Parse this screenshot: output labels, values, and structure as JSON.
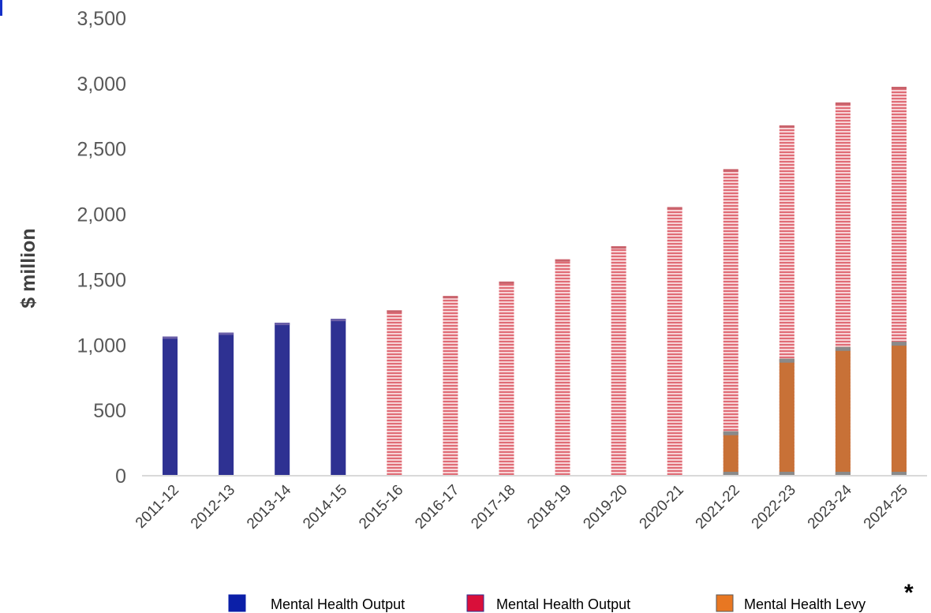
{
  "chart_data": {
    "type": "bar",
    "categories": [
      "2011-12",
      "2012-13",
      "2013-14",
      "2014-15",
      "2015-16",
      "2016-17",
      "2017-18",
      "2018-19",
      "2019-20",
      "2020-21",
      "2021-22",
      "2022-23",
      "2023-24",
      "2024-25"
    ],
    "ylabel": "$ million",
    "ylim": [
      0,
      3500
    ],
    "yticks": [
      0,
      500,
      1000,
      1500,
      2000,
      2500,
      3000,
      3500
    ],
    "ytick_labels": [
      "0",
      "500",
      "1,000",
      "1,500",
      "2,000",
      "2,500",
      "3,000",
      "3,500"
    ],
    "grid": false,
    "legend_position": "bottom",
    "series": [
      {
        "name": "Mental Health Output",
        "color": "#2e3192",
        "pattern": "solid",
        "values": [
          1065,
          1095,
          1170,
          1200,
          null,
          null,
          null,
          null,
          null,
          null,
          null,
          null,
          null,
          null
        ]
      },
      {
        "name": "Mental Health Output",
        "color": "#e8747c",
        "pattern": "horizontal-stripes",
        "values": [
          null,
          null,
          null,
          null,
          1265,
          1375,
          1485,
          1655,
          1755,
          2055,
          2345,
          2680,
          2855,
          2975
        ]
      },
      {
        "name": "Mental Health Levy",
        "color": "#c87137",
        "pattern": "solid",
        "values": [
          null,
          null,
          null,
          null,
          null,
          null,
          null,
          null,
          null,
          null,
          340,
          895,
          985,
          1025
        ]
      }
    ],
    "legend_swatch_colors": [
      "#0b1fa8",
      "#d90f3a",
      "#e87722"
    ],
    "legend_note": "*"
  }
}
